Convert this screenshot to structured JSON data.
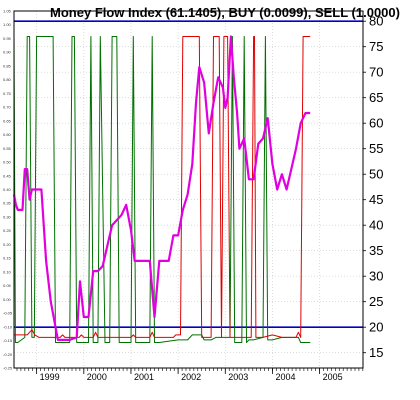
{
  "chart_data": {
    "type": "line",
    "title": "Money Flow Index (61.1405), BUY (0.0099), SELL (1.0000)",
    "right_axis": {
      "ylim": [
        12,
        82
      ],
      "ticks": [
        15,
        20,
        25,
        30,
        35,
        40,
        45,
        50,
        55,
        60,
        65,
        70,
        75,
        80
      ]
    },
    "left_axis": {
      "ylim": [
        -0.25,
        1.05
      ],
      "ticks": [
        "1.05",
        "1.00",
        "0.95",
        "0.90",
        "0.85",
        "0.80",
        "0.75",
        "0.70",
        "0.65",
        "0.60",
        "0.55",
        "0.50",
        "0.45",
        "0.40",
        "0.35",
        "0.30",
        "0.25",
        "0.20",
        "0.15",
        "0.10",
        "0.05",
        "0.00",
        "-0.05",
        "-0.10",
        "-0.15",
        "-0.20",
        "-0.25"
      ]
    },
    "x_axis": {
      "range": [
        1998.52,
        2005.92
      ],
      "labels": [
        "1999",
        "2000",
        "2001",
        "2002",
        "2003",
        "2004",
        "2005"
      ]
    },
    "reference_lines": [
      {
        "value": 80,
        "color": "#0000c8"
      },
      {
        "value": 20,
        "color": "#0000c8"
      }
    ],
    "grid": true,
    "series": [
      {
        "key": "mfi",
        "color": "#e000e0",
        "width": 2.2,
        "x": [
          1998.52,
          1998.56,
          1998.6,
          1998.65,
          1998.7,
          1998.75,
          1998.8,
          1998.85,
          1998.9,
          1999.0,
          1999.1,
          1999.2,
          1999.3,
          1999.45,
          1999.6,
          1999.7,
          1999.85,
          1999.92,
          2000.0,
          2000.1,
          2000.2,
          2000.3,
          2000.4,
          2000.5,
          2000.6,
          2000.7,
          2000.8,
          2000.9,
          2001.0,
          2001.08,
          2001.15,
          2001.2,
          2001.3,
          2001.4,
          2001.5,
          2001.6,
          2001.7,
          2001.8,
          2001.9,
          2002.0,
          2002.1,
          2002.2,
          2002.3,
          2002.38,
          2002.45,
          2002.55,
          2002.65,
          2002.75,
          2002.85,
          2002.95,
          2003.0,
          2003.05,
          2003.12,
          2003.18,
          2003.25,
          2003.3,
          2003.4,
          2003.5,
          2003.6,
          2003.7,
          2003.8,
          2003.9,
          2004.0,
          2004.1,
          2004.2,
          2004.3,
          2004.4,
          2004.5,
          2004.6,
          2004.7,
          2004.8
        ],
        "y": [
          46,
          44,
          43,
          43,
          43,
          51,
          51,
          45,
          47,
          47,
          47,
          33,
          25,
          17.5,
          17.5,
          17.5,
          18,
          29,
          22,
          22,
          31,
          31,
          32,
          36,
          40,
          41,
          42,
          44,
          39,
          33,
          33,
          33,
          33,
          33,
          22,
          33,
          33,
          33,
          38,
          38,
          43,
          46,
          52,
          64,
          71,
          68,
          58,
          64,
          69,
          67,
          63,
          65,
          77,
          69,
          62,
          55,
          57,
          49,
          49,
          56,
          57,
          61,
          52,
          47,
          50,
          47,
          51,
          55,
          60,
          62,
          62
        ]
      },
      {
        "key": "sell",
        "color": "#e00000",
        "width": 1,
        "x": [
          1998.52,
          1998.8,
          1998.9,
          1998.96,
          1999.05,
          1999.5,
          1999.55,
          1999.6,
          1999.9,
          1999.95,
          2000.0,
          2000.05,
          2000.2,
          2000.25,
          2000.3,
          2000.45,
          2001.0,
          2001.05,
          2001.1,
          2001.2,
          2001.4,
          2001.45,
          2001.5,
          2001.6,
          2001.9,
          2001.95,
          2002.0,
          2002.05,
          2002.1,
          2002.45,
          2002.5,
          2002.55,
          2002.7,
          2002.75,
          2002.82,
          2002.87,
          2002.92,
          2002.97,
          2003.05,
          2003.1,
          2003.15,
          2003.3,
          2003.55,
          2003.6,
          2003.62,
          2003.65,
          2003.7,
          2003.75,
          2003.8,
          2004.0,
          2004.2,
          2004.4,
          2004.45,
          2004.5,
          2004.55,
          2004.6,
          2004.65,
          2004.8
        ],
        "y": [
          18.5,
          18.5,
          19.5,
          18.5,
          18,
          18,
          18.5,
          18,
          18,
          18.5,
          18,
          18,
          18,
          19,
          18,
          18,
          18,
          18.5,
          18,
          18,
          18,
          19,
          18,
          18,
          18,
          18.5,
          18.5,
          18.5,
          77,
          77,
          18,
          18,
          18,
          77,
          77,
          77,
          18,
          77,
          77,
          18,
          18,
          18,
          18,
          77,
          77,
          18,
          18,
          18,
          18,
          18.5,
          18,
          18,
          18,
          18,
          19,
          18,
          77,
          77
        ]
      },
      {
        "key": "buy",
        "color": "#007000",
        "width": 1,
        "x": [
          1998.52,
          1998.55,
          1998.6,
          1998.75,
          1998.8,
          1998.85,
          1998.9,
          1998.95,
          1999.0,
          1999.15,
          1999.35,
          1999.4,
          1999.45,
          1999.5,
          1999.7,
          1999.75,
          1999.8,
          1999.85,
          1999.9,
          1999.95,
          2000.0,
          2000.1,
          2000.15,
          2000.2,
          2000.25,
          2000.3,
          2000.35,
          2000.45,
          2000.5,
          2000.55,
          2000.6,
          2000.7,
          2000.75,
          2000.8,
          2001.0,
          2001.05,
          2001.1,
          2001.15,
          2001.4,
          2001.45,
          2001.5,
          2001.55,
          2001.6,
          2002.0,
          2002.2,
          2002.3,
          2002.4,
          2002.45,
          2002.5,
          2002.55,
          2002.7,
          2002.8,
          2003.0,
          2003.1,
          2003.15,
          2003.2,
          2003.3,
          2003.35,
          2003.4,
          2003.45,
          2003.5,
          2003.6,
          2003.8,
          2003.85,
          2003.9,
          2003.95,
          2004.0,
          2004.2,
          2004.4,
          2004.5,
          2004.55,
          2004.6,
          2004.8
        ],
        "y": [
          77,
          17,
          17,
          18,
          77,
          77,
          18,
          18,
          77,
          77,
          77,
          17,
          17,
          17,
          17,
          77,
          77,
          17,
          17,
          17,
          17,
          17,
          77,
          17,
          17,
          17,
          77,
          17,
          17,
          17,
          77,
          77,
          17,
          17,
          17,
          77,
          17,
          17,
          17,
          77,
          17,
          17,
          17,
          17.5,
          17.5,
          18.5,
          18.5,
          18.5,
          18.5,
          17.5,
          17.5,
          18,
          18,
          18,
          77,
          17,
          17,
          17,
          77,
          17,
          17.5,
          17.5,
          18,
          77,
          17.5,
          17.5,
          17.5,
          18,
          18,
          18,
          18,
          17,
          17
        ]
      }
    ]
  }
}
